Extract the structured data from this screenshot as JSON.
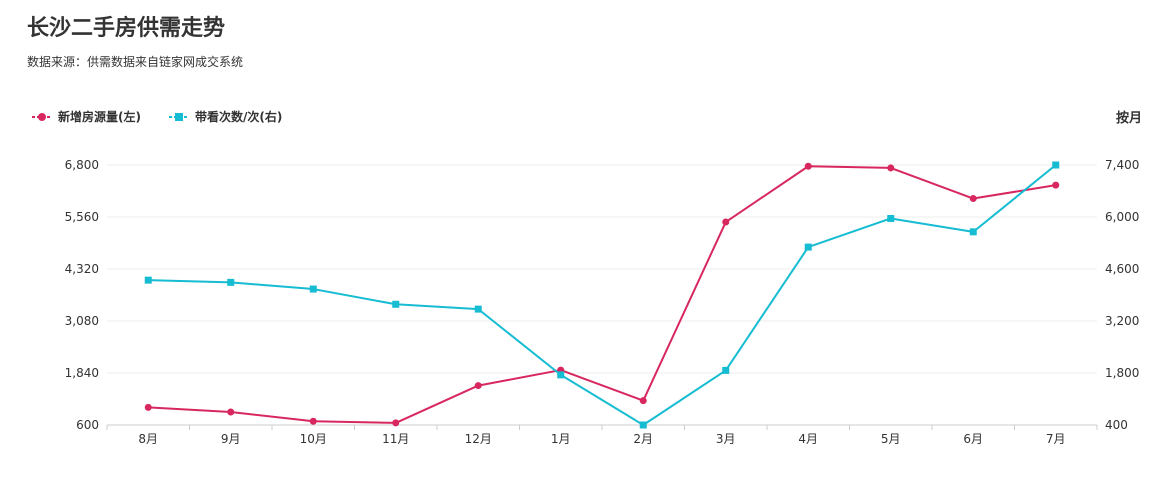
{
  "header": {
    "title": "长沙二手房供需走势",
    "source": "数据来源：供需数据来自链家网成交系统"
  },
  "period_label": "按月",
  "colors": {
    "left_series": "#d8275f",
    "right_series": "#15bcd2",
    "grid": "#eeeeee",
    "axis": "#cccccc"
  },
  "chart_data": {
    "type": "line",
    "categories": [
      "8月",
      "9月",
      "10月",
      "11月",
      "12月",
      "1月",
      "2月",
      "3月",
      "4月",
      "5月",
      "6月",
      "7月"
    ],
    "series": [
      {
        "name": "新增房源量(左)",
        "axis": "left",
        "marker": "circle",
        "values": [
          1020,
          910,
          690,
          650,
          1540,
          1910,
          1180,
          5440,
          6770,
          6730,
          6000,
          6320
        ]
      },
      {
        "name": "带看次数/次(右)",
        "axis": "right",
        "marker": "square",
        "values": [
          4300,
          4240,
          4060,
          3650,
          3520,
          1750,
          400,
          1870,
          5190,
          5960,
          5600,
          7400
        ]
      }
    ],
    "y_left": {
      "min": 600,
      "max": 6800,
      "ticks": [
        "6,800",
        "5,560",
        "4,320",
        "3,080",
        "1,840",
        "600"
      ],
      "tick_values": [
        6800,
        5560,
        4320,
        3080,
        1840,
        600
      ]
    },
    "y_right": {
      "min": 400,
      "max": 7400,
      "ticks": [
        "7,400",
        "6,000",
        "4,600",
        "3,200",
        "1,800",
        "400"
      ],
      "tick_values": [
        7400,
        6000,
        4600,
        3200,
        1800,
        400
      ]
    },
    "grid": true,
    "legend_position": "top-left"
  }
}
